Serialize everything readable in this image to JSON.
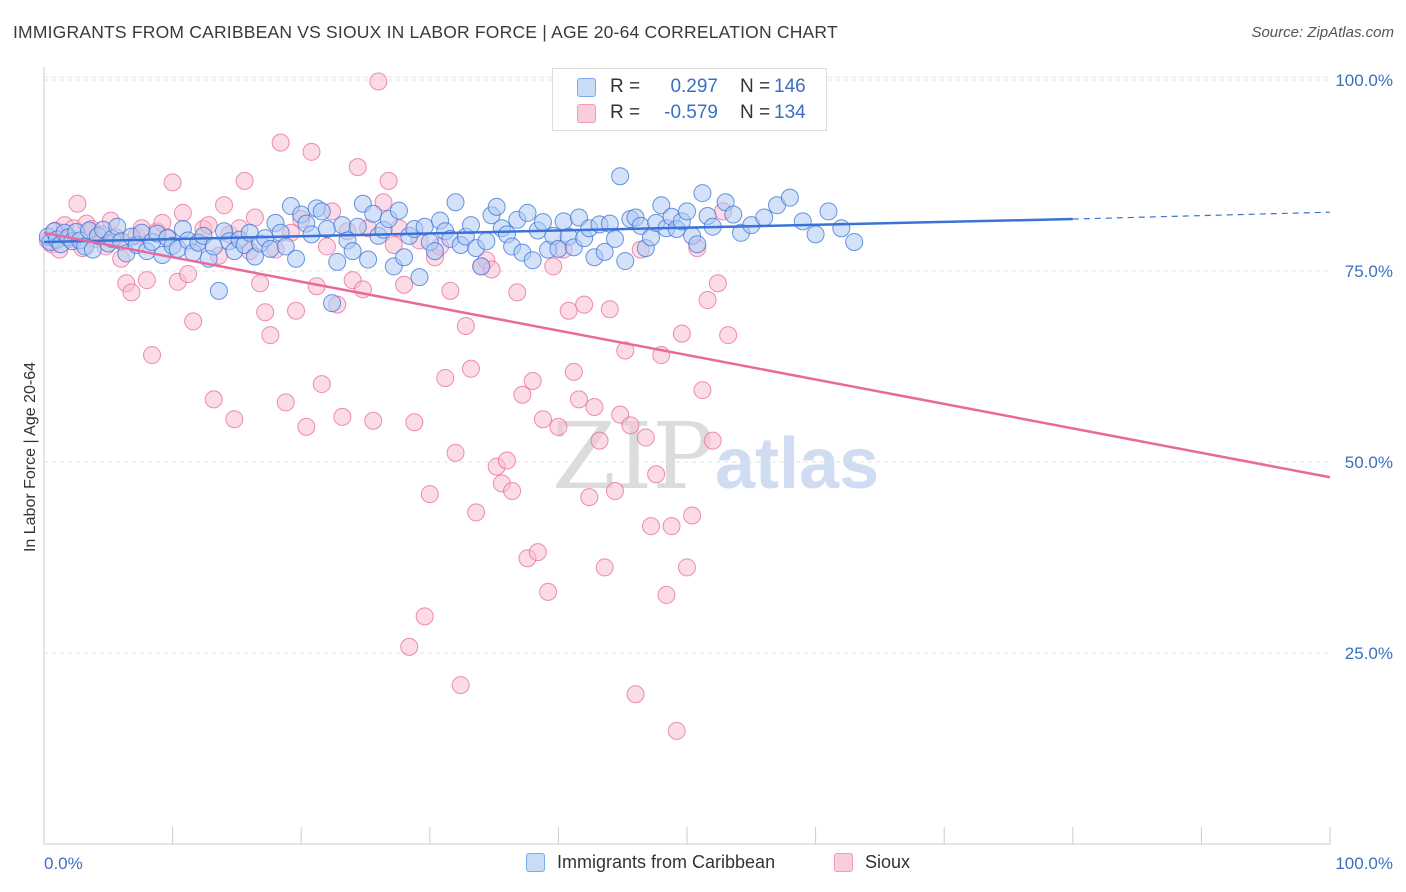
{
  "title": "IMMIGRANTS FROM CARIBBEAN VS SIOUX IN LABOR FORCE | AGE 20-64 CORRELATION CHART",
  "source": "Source: ZipAtlas.com",
  "watermark": {
    "zip": "ZIP",
    "atlas": "atlas"
  },
  "legend": {
    "rows": [
      {
        "r_label": "R =",
        "r_value": "0.297",
        "n_label": "N =",
        "n_value": "146",
        "color": "#7aaaf0",
        "fill": "#c8dcf8"
      },
      {
        "r_label": "R =",
        "r_value": "-0.579",
        "n_label": "N =",
        "n_value": "134",
        "color": "#f09ab8",
        "fill": "#f9cdde"
      }
    ]
  },
  "bottom_legend": {
    "series1": "Immigrants from Caribbean",
    "series2": "Sioux"
  },
  "chart_data": {
    "type": "scatter",
    "title": "IMMIGRANTS FROM CARIBBEAN VS SIOUX IN LABOR FORCE | AGE 20-64 CORRELATION CHART",
    "xlabel": "",
    "ylabel": "In Labor Force | Age 20-64",
    "xlim": [
      0,
      100
    ],
    "ylim": [
      0,
      105
    ],
    "x_tick_labels": [
      "0.0%",
      "100.0%"
    ],
    "y_ticks": [
      25,
      50,
      75,
      100
    ],
    "y_tick_labels": [
      "25.0%",
      "50.0%",
      "75.0%",
      "100.0%"
    ],
    "grid": true,
    "colors": {
      "blue": "#3a72d8",
      "pink": "#e86a9a",
      "blue_fill": "#aecbf4",
      "pink_fill": "#f7bdd2",
      "tick": "#3a6fc4"
    },
    "series": [
      {
        "name": "Immigrants from Caribbean",
        "color": "blue",
        "trend": {
          "x0": 0,
          "y0": 78.8,
          "x1": 80,
          "y1": 81.8,
          "dash_x1": 100,
          "dash_y1": 82.7
        },
        "points": [
          [
            0.3,
            79.5
          ],
          [
            0.5,
            78.8
          ],
          [
            0.8,
            80.2
          ],
          [
            1.0,
            79.1
          ],
          [
            1.3,
            78.5
          ],
          [
            1.6,
            80.0
          ],
          [
            1.9,
            79.4
          ],
          [
            2.2,
            78.9
          ],
          [
            2.5,
            80.1
          ],
          [
            2.8,
            79.0
          ],
          [
            3.2,
            78.2
          ],
          [
            3.5,
            80.3
          ],
          [
            3.8,
            77.8
          ],
          [
            4.2,
            79.6
          ],
          [
            4.6,
            80.4
          ],
          [
            5.0,
            78.6
          ],
          [
            5.3,
            79.2
          ],
          [
            5.7,
            80.8
          ],
          [
            6.0,
            78.9
          ],
          [
            6.4,
            77.3
          ],
          [
            6.8,
            79.5
          ],
          [
            7.2,
            78.4
          ],
          [
            7.6,
            80.0
          ],
          [
            8.0,
            77.6
          ],
          [
            8.4,
            78.8
          ],
          [
            8.8,
            79.9
          ],
          [
            9.2,
            77.1
          ],
          [
            9.6,
            79.3
          ],
          [
            10.0,
            78.3
          ],
          [
            10.4,
            77.9
          ],
          [
            10.8,
            80.5
          ],
          [
            11.2,
            79.0
          ],
          [
            11.6,
            77.4
          ],
          [
            12.0,
            78.7
          ],
          [
            12.4,
            79.6
          ],
          [
            12.8,
            76.6
          ],
          [
            13.2,
            78.2
          ],
          [
            13.6,
            72.4
          ],
          [
            14.0,
            80.2
          ],
          [
            14.4,
            78.9
          ],
          [
            14.8,
            77.6
          ],
          [
            15.2,
            79.1
          ],
          [
            15.6,
            78.4
          ],
          [
            16.0,
            80.0
          ],
          [
            16.4,
            76.9
          ],
          [
            16.8,
            78.6
          ],
          [
            17.2,
            79.3
          ],
          [
            17.6,
            77.9
          ],
          [
            18.0,
            81.3
          ],
          [
            18.4,
            80.0
          ],
          [
            18.8,
            78.2
          ],
          [
            19.2,
            83.5
          ],
          [
            19.6,
            76.6
          ],
          [
            20.0,
            82.4
          ],
          [
            20.4,
            81.2
          ],
          [
            20.8,
            79.8
          ],
          [
            21.2,
            83.2
          ],
          [
            21.6,
            82.8
          ],
          [
            22.0,
            80.5
          ],
          [
            22.4,
            70.8
          ],
          [
            22.8,
            76.2
          ],
          [
            23.2,
            81.0
          ],
          [
            23.6,
            79.0
          ],
          [
            24.0,
            77.6
          ],
          [
            24.4,
            80.8
          ],
          [
            24.8,
            83.8
          ],
          [
            25.2,
            76.5
          ],
          [
            25.6,
            82.5
          ],
          [
            26.0,
            79.6
          ],
          [
            26.4,
            80.4
          ],
          [
            26.8,
            81.8
          ],
          [
            27.2,
            75.6
          ],
          [
            27.6,
            82.9
          ],
          [
            28.0,
            76.8
          ],
          [
            28.4,
            79.6
          ],
          [
            28.8,
            80.5
          ],
          [
            29.2,
            74.2
          ],
          [
            29.6,
            80.8
          ],
          [
            30.0,
            78.8
          ],
          [
            30.4,
            77.6
          ],
          [
            30.8,
            81.6
          ],
          [
            31.2,
            80.2
          ],
          [
            31.6,
            79.2
          ],
          [
            32.0,
            84.0
          ],
          [
            32.4,
            78.4
          ],
          [
            32.8,
            79.5
          ],
          [
            33.2,
            81.0
          ],
          [
            33.6,
            78.0
          ],
          [
            34.0,
            75.6
          ],
          [
            34.4,
            78.9
          ],
          [
            34.8,
            82.3
          ],
          [
            35.2,
            83.4
          ],
          [
            35.6,
            80.6
          ],
          [
            36.0,
            79.8
          ],
          [
            36.4,
            78.2
          ],
          [
            36.8,
            81.7
          ],
          [
            37.2,
            77.4
          ],
          [
            37.6,
            82.6
          ],
          [
            38.0,
            76.4
          ],
          [
            38.4,
            80.3
          ],
          [
            38.8,
            81.4
          ],
          [
            39.2,
            77.8
          ],
          [
            39.6,
            79.6
          ],
          [
            40.0,
            77.9
          ],
          [
            40.4,
            81.5
          ],
          [
            40.8,
            79.5
          ],
          [
            41.2,
            78.1
          ],
          [
            41.6,
            82.0
          ],
          [
            42.0,
            79.3
          ],
          [
            42.4,
            80.6
          ],
          [
            42.8,
            76.8
          ],
          [
            43.2,
            81.1
          ],
          [
            43.6,
            77.5
          ],
          [
            44.0,
            81.2
          ],
          [
            44.4,
            79.2
          ],
          [
            44.8,
            87.4
          ],
          [
            45.2,
            76.3
          ],
          [
            45.6,
            81.8
          ],
          [
            46.0,
            82.0
          ],
          [
            46.4,
            80.9
          ],
          [
            46.8,
            78.0
          ],
          [
            47.2,
            79.4
          ],
          [
            47.6,
            81.3
          ],
          [
            48.0,
            83.6
          ],
          [
            48.4,
            80.6
          ],
          [
            48.8,
            82.1
          ],
          [
            49.2,
            80.5
          ],
          [
            49.6,
            81.5
          ],
          [
            50.0,
            82.8
          ],
          [
            50.4,
            79.6
          ],
          [
            50.8,
            78.5
          ],
          [
            51.2,
            85.2
          ],
          [
            51.6,
            82.2
          ],
          [
            52.0,
            80.8
          ],
          [
            53.0,
            84.0
          ],
          [
            53.6,
            82.4
          ],
          [
            54.2,
            80.0
          ],
          [
            55.0,
            81.0
          ],
          [
            56.0,
            82.0
          ],
          [
            57.0,
            83.6
          ],
          [
            58.0,
            84.6
          ],
          [
            59.0,
            81.5
          ],
          [
            60.0,
            79.8
          ],
          [
            61.0,
            82.8
          ],
          [
            62.0,
            80.6
          ],
          [
            63.0,
            78.8
          ]
        ]
      },
      {
        "name": "Sioux",
        "color": "pink",
        "trend": {
          "x0": 0,
          "y0": 80.0,
          "x1": 100,
          "y1": 48.0
        },
        "points": [
          [
            0.3,
            79.0
          ],
          [
            0.6,
            78.5
          ],
          [
            0.9,
            80.3
          ],
          [
            1.2,
            77.8
          ],
          [
            1.6,
            81.0
          ],
          [
            2.0,
            79.2
          ],
          [
            2.3,
            80.6
          ],
          [
            2.6,
            83.8
          ],
          [
            3.0,
            78.0
          ],
          [
            3.3,
            81.2
          ],
          [
            3.7,
            80.5
          ],
          [
            4.0,
            79.2
          ],
          [
            4.4,
            79.8
          ],
          [
            4.8,
            78.2
          ],
          [
            5.2,
            81.6
          ],
          [
            5.6,
            79.4
          ],
          [
            6.0,
            76.6
          ],
          [
            6.4,
            73.4
          ],
          [
            6.8,
            72.2
          ],
          [
            7.2,
            79.6
          ],
          [
            7.6,
            80.6
          ],
          [
            8.0,
            73.8
          ],
          [
            8.4,
            64.0
          ],
          [
            8.8,
            80.2
          ],
          [
            9.2,
            81.3
          ],
          [
            9.6,
            79.4
          ],
          [
            10.0,
            86.6
          ],
          [
            10.4,
            73.6
          ],
          [
            10.8,
            82.6
          ],
          [
            11.2,
            74.6
          ],
          [
            11.6,
            68.4
          ],
          [
            12.0,
            78.8
          ],
          [
            12.4,
            80.5
          ],
          [
            12.8,
            81.0
          ],
          [
            13.2,
            58.2
          ],
          [
            13.6,
            77.0
          ],
          [
            14.0,
            83.6
          ],
          [
            14.4,
            79.8
          ],
          [
            14.8,
            55.6
          ],
          [
            15.2,
            80.6
          ],
          [
            15.6,
            86.8
          ],
          [
            16.0,
            77.6
          ],
          [
            16.4,
            82.0
          ],
          [
            16.8,
            73.4
          ],
          [
            17.2,
            69.6
          ],
          [
            17.6,
            66.6
          ],
          [
            18.0,
            77.8
          ],
          [
            18.4,
            91.8
          ],
          [
            18.8,
            57.8
          ],
          [
            19.2,
            80.0
          ],
          [
            19.6,
            69.8
          ],
          [
            20.0,
            81.8
          ],
          [
            20.4,
            54.6
          ],
          [
            20.8,
            90.6
          ],
          [
            21.2,
            73.0
          ],
          [
            21.6,
            60.2
          ],
          [
            22.0,
            78.2
          ],
          [
            22.4,
            82.8
          ],
          [
            22.8,
            70.6
          ],
          [
            23.2,
            55.9
          ],
          [
            23.6,
            80.2
          ],
          [
            24.0,
            73.8
          ],
          [
            24.4,
            88.6
          ],
          [
            24.8,
            72.6
          ],
          [
            25.2,
            80.6
          ],
          [
            25.6,
            55.4
          ],
          [
            26.0,
            99.8
          ],
          [
            26.4,
            84.0
          ],
          [
            26.8,
            86.8
          ],
          [
            27.2,
            78.4
          ],
          [
            27.6,
            80.6
          ],
          [
            28.0,
            73.2
          ],
          [
            28.4,
            25.8
          ],
          [
            28.8,
            55.2
          ],
          [
            29.2,
            79.0
          ],
          [
            29.6,
            29.8
          ],
          [
            30.0,
            45.8
          ],
          [
            30.4,
            76.8
          ],
          [
            30.8,
            78.2
          ],
          [
            31.2,
            61.0
          ],
          [
            31.6,
            72.4
          ],
          [
            32.0,
            51.2
          ],
          [
            32.4,
            20.8
          ],
          [
            32.8,
            67.8
          ],
          [
            33.2,
            62.2
          ],
          [
            33.6,
            43.4
          ],
          [
            34.0,
            75.6
          ],
          [
            34.4,
            76.4
          ],
          [
            34.8,
            75.2
          ],
          [
            35.2,
            49.4
          ],
          [
            35.6,
            47.2
          ],
          [
            36.0,
            50.2
          ],
          [
            36.4,
            46.2
          ],
          [
            36.8,
            72.2
          ],
          [
            37.2,
            58.8
          ],
          [
            37.6,
            37.4
          ],
          [
            38.0,
            60.6
          ],
          [
            38.4,
            38.2
          ],
          [
            38.8,
            55.6
          ],
          [
            39.2,
            33.0
          ],
          [
            39.6,
            75.6
          ],
          [
            40.0,
            54.6
          ],
          [
            40.4,
            77.8
          ],
          [
            40.8,
            69.8
          ],
          [
            41.2,
            61.8
          ],
          [
            41.6,
            58.2
          ],
          [
            42.0,
            70.6
          ],
          [
            42.4,
            45.4
          ],
          [
            42.8,
            57.2
          ],
          [
            43.2,
            52.8
          ],
          [
            43.6,
            36.2
          ],
          [
            44.0,
            70.0
          ],
          [
            44.4,
            46.2
          ],
          [
            44.8,
            56.2
          ],
          [
            45.2,
            64.6
          ],
          [
            45.6,
            54.8
          ],
          [
            46.0,
            19.6
          ],
          [
            46.4,
            77.8
          ],
          [
            46.8,
            53.2
          ],
          [
            47.2,
            41.6
          ],
          [
            47.6,
            48.4
          ],
          [
            48.0,
            64.0
          ],
          [
            48.4,
            32.6
          ],
          [
            48.8,
            41.6
          ],
          [
            49.2,
            14.8
          ],
          [
            49.6,
            66.8
          ],
          [
            50.0,
            36.2
          ],
          [
            50.4,
            43.0
          ],
          [
            50.8,
            78.0
          ],
          [
            51.2,
            59.4
          ],
          [
            51.6,
            71.2
          ],
          [
            52.0,
            52.8
          ],
          [
            52.4,
            73.4
          ],
          [
            52.8,
            82.8
          ],
          [
            53.2,
            66.6
          ]
        ]
      }
    ]
  }
}
